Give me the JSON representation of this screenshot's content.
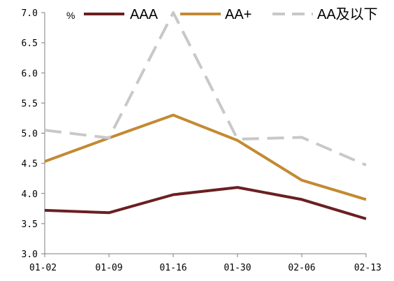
{
  "chart_data": {
    "type": "line",
    "unit": "%",
    "categories": [
      "01-02",
      "01-09",
      "01-16",
      "01-30",
      "02-06",
      "02-13"
    ],
    "y_ticks": [
      "3.0",
      "3.5",
      "4.0",
      "4.5",
      "5.0",
      "5.5",
      "6.0",
      "6.5",
      "7.0"
    ],
    "ylim": [
      3.0,
      7.0
    ],
    "grid": false,
    "legend_position": "top",
    "series": [
      {
        "name": "AAA",
        "color": "#6b1f22",
        "dash": "solid",
        "values": [
          3.72,
          3.68,
          3.98,
          4.1,
          3.9,
          3.58
        ]
      },
      {
        "name": "AA+",
        "color": "#c38a32",
        "dash": "solid",
        "values": [
          4.53,
          4.92,
          5.3,
          4.88,
          4.22,
          3.9
        ]
      },
      {
        "name": "AA及以下",
        "color": "#c8c8c8",
        "dash": "dashed",
        "values": [
          5.05,
          4.92,
          7.0,
          4.9,
          4.93,
          4.47
        ]
      }
    ]
  }
}
